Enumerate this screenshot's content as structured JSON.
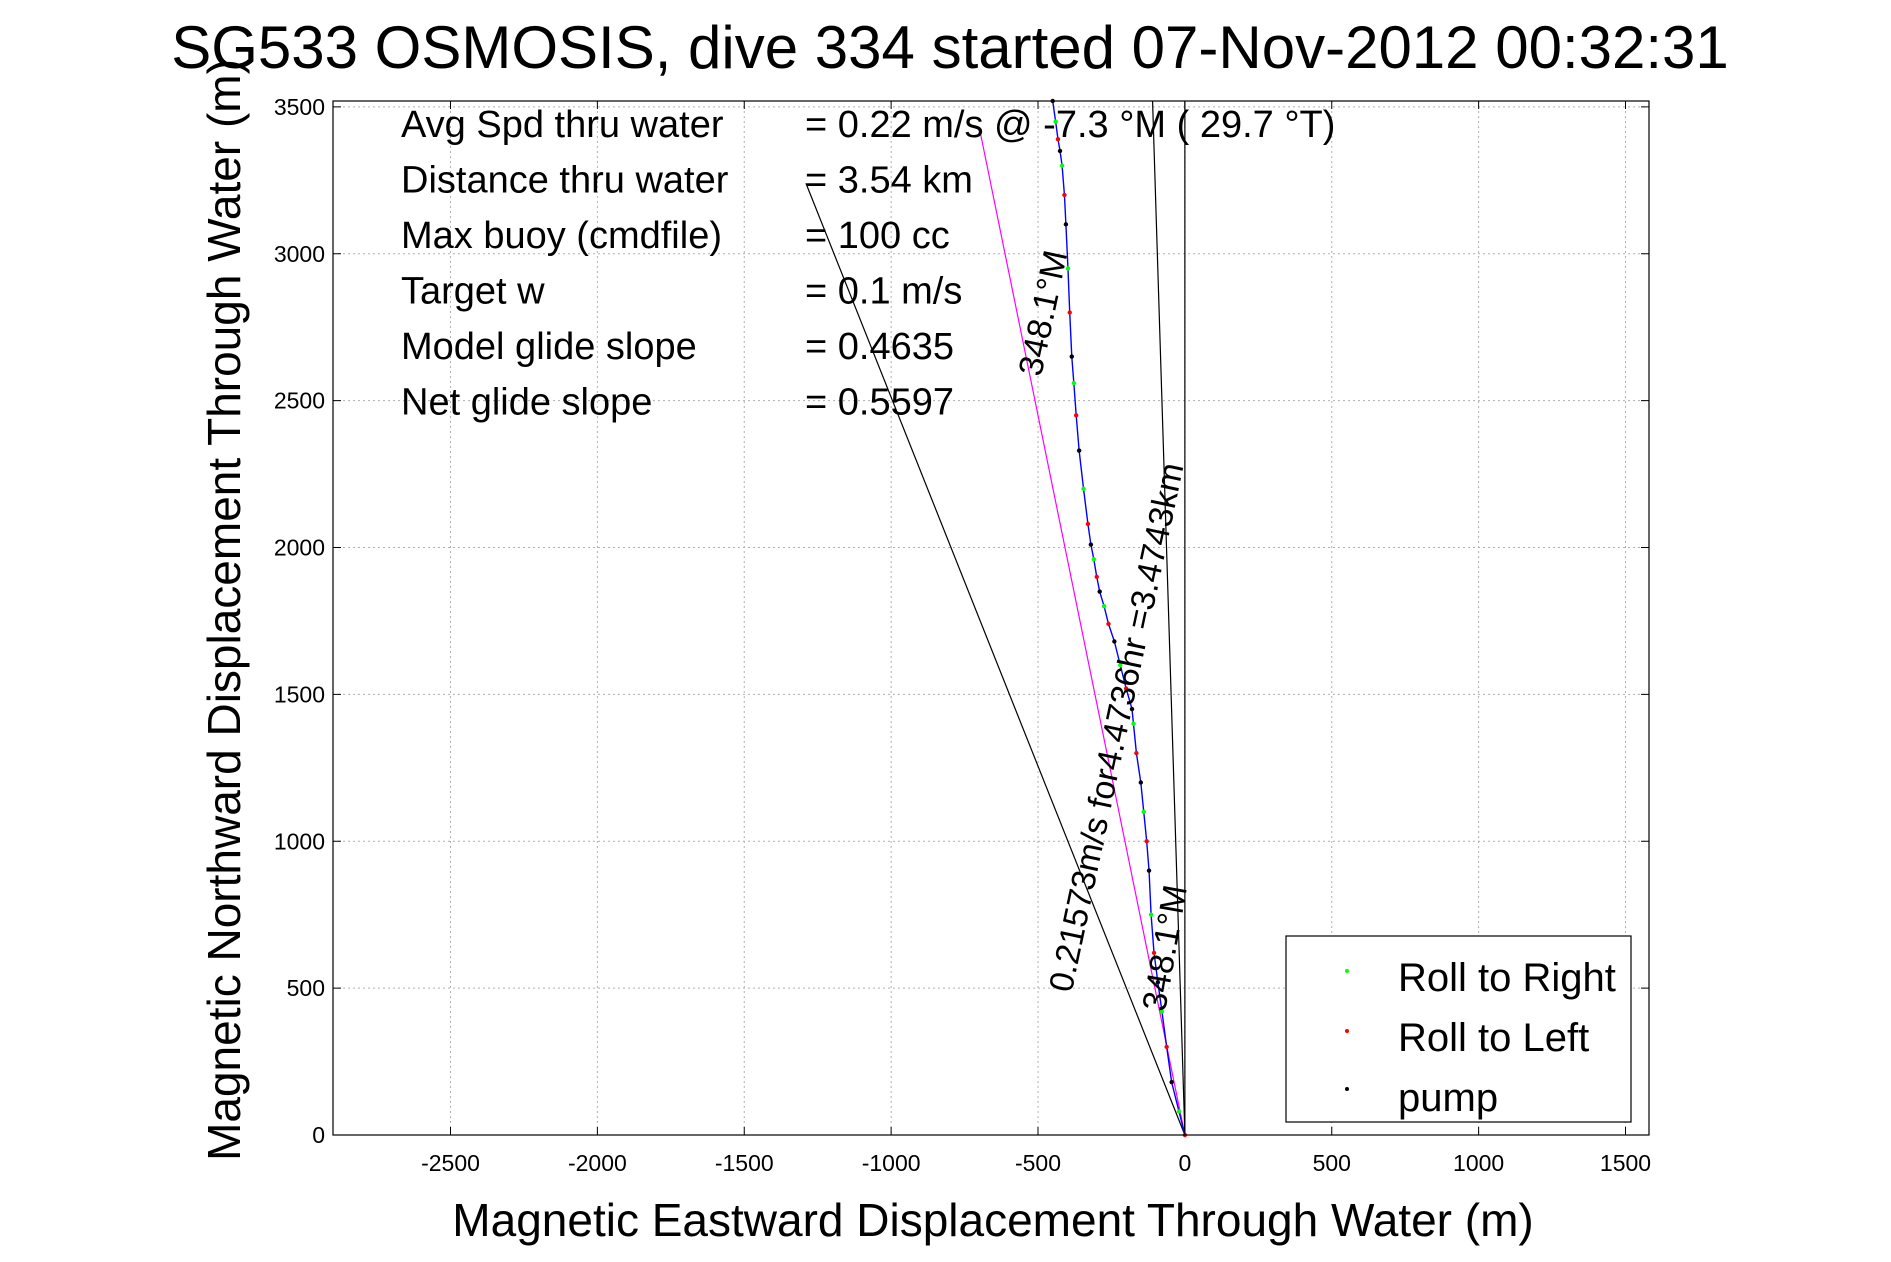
{
  "chart_data": {
    "type": "line",
    "title": "SG533 OSMOSIS, dive 334 started 07-Nov-2012 00:32:31",
    "xlabel": "Magnetic Eastward Displacement Through Water (m)",
    "ylabel": "Magnetic Northward Displacement Through Water (m)",
    "xlim": [
      -2900,
      1580
    ],
    "ylim": [
      0,
      3520
    ],
    "xticks": [
      -2500,
      -2000,
      -1500,
      -1000,
      -500,
      0,
      500,
      1000,
      1500
    ],
    "yticks": [
      0,
      500,
      1000,
      1500,
      2000,
      2500,
      3000,
      3500
    ],
    "xtick_labels": [
      "-2500",
      "-2000",
      "-1500",
      "-1000",
      "-500",
      "0",
      "500",
      "1000",
      "1500"
    ],
    "ytick_labels": [
      "0",
      "500",
      "1000",
      "1500",
      "2000",
      "2500",
      "3000",
      "3500"
    ],
    "grid": true,
    "legend_placement": "bottom-right",
    "info_lines": [
      {
        "label": "Avg Spd thru water",
        "value": "=  0.22 m/s @  -7.3 °M ( 29.7 °T)"
      },
      {
        "label": "Distance thru water",
        "value": "=  3.54 km"
      },
      {
        "label": "Max buoy (cmdfile)",
        "value": "= 100 cc"
      },
      {
        "label": "Target w",
        "value": "= 0.1 m/s"
      },
      {
        "label": "Model glide slope",
        "value": "= 0.4635"
      },
      {
        "label": "Net glide slope",
        "value": "= 0.5597"
      }
    ],
    "annotations": [
      {
        "text": "348.1°M",
        "x": -445,
        "y": 2790,
        "angle": -78
      },
      {
        "text": "0.21573m/s for4.4736hr =3.4743km",
        "x": -195,
        "y": 1380,
        "angle": -78
      },
      {
        "text": "348.1°M",
        "x": -30,
        "y": 630,
        "angle": -80
      }
    ],
    "series": [
      {
        "name": "track",
        "color": "#0000ff",
        "x": [
          0,
          -20,
          -45,
          -62,
          -78,
          -92,
          -105,
          -115,
          -122,
          -130,
          -140,
          -150,
          -165,
          -175,
          -180,
          -200,
          -220,
          -240,
          -260,
          -275,
          -290,
          -300,
          -310,
          -320,
          -330,
          -345,
          -360,
          -370,
          -378,
          -385,
          -392,
          -398,
          -405,
          -410,
          -418,
          -425,
          -432,
          -440,
          -450
        ],
        "y": [
          0,
          80,
          180,
          300,
          420,
          520,
          620,
          750,
          900,
          1000,
          1100,
          1200,
          1300,
          1400,
          1450,
          1520,
          1600,
          1680,
          1740,
          1800,
          1850,
          1900,
          1960,
          2010,
          2080,
          2200,
          2330,
          2450,
          2560,
          2650,
          2800,
          2950,
          3100,
          3200,
          3300,
          3350,
          3390,
          3450,
          3520
        ]
      }
    ],
    "lines": [
      {
        "from": [
          0,
          0
        ],
        "to": [
          -700,
          3430
        ],
        "color": "#ff00ff"
      },
      {
        "from": [
          0,
          0
        ],
        "to": [
          -1290,
          3240
        ],
        "color": "#000000"
      },
      {
        "from": [
          0,
          0
        ],
        "to": [
          -110,
          3520
        ],
        "color": "#000000"
      },
      {
        "from": [
          0,
          0
        ],
        "to": [
          0,
          3520
        ],
        "color": "#000000"
      }
    ],
    "legend": [
      {
        "label": "Roll to Right",
        "color": "#00ff00"
      },
      {
        "label": "Roll to Left",
        "color": "#ff0000"
      },
      {
        "label": "pump",
        "color": "#000000"
      }
    ],
    "colors": {
      "roll_right": "#00ff00",
      "roll_left": "#ff0000",
      "pump": "#000000",
      "track": "#0000ff",
      "net": "#ff00ff"
    }
  }
}
